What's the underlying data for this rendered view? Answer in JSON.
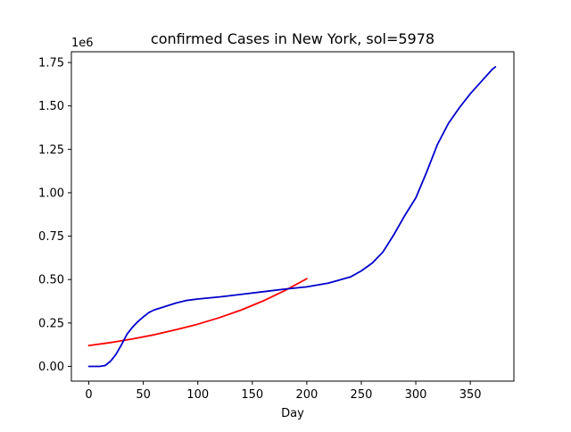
{
  "chart_data": {
    "type": "line",
    "title": "confirmed Cases in New York, sol=5978",
    "xlabel": "Day",
    "ylabel": "",
    "y_offset_label": "1e6",
    "xlim": [
      -16,
      390
    ],
    "ylim": [
      -85000,
      1812000
    ],
    "x_ticks": [
      0,
      50,
      100,
      150,
      200,
      250,
      300,
      350
    ],
    "x_tick_labels": [
      "0",
      "50",
      "100",
      "150",
      "200",
      "250",
      "300",
      "350"
    ],
    "y_ticks": [
      0,
      250000,
      500000,
      750000,
      1000000,
      1250000,
      1500000,
      1750000
    ],
    "y_tick_labels": [
      "0.00",
      "0.25",
      "0.50",
      "0.75",
      "1.00",
      "1.25",
      "1.50",
      "1.75"
    ],
    "grid": false,
    "series": [
      {
        "color": "#ff0000",
        "x": [
          0,
          20,
          40,
          60,
          80,
          100,
          120,
          140,
          160,
          180,
          200
        ],
        "y": [
          120000,
          137000,
          158000,
          182000,
          211000,
          243000,
          281000,
          325000,
          377000,
          437000,
          505000
        ]
      },
      {
        "color": "#0000cc",
        "x": [
          0,
          5,
          10,
          15,
          20,
          25,
          30,
          35,
          40,
          45,
          50,
          55,
          60,
          70,
          80,
          90,
          100,
          120,
          140,
          160,
          180,
          200,
          220,
          240,
          250,
          260,
          270,
          280,
          290,
          300,
          310,
          320,
          330,
          340,
          350,
          360,
          370,
          373
        ],
        "y": [
          0,
          0,
          0,
          5000,
          30000,
          70000,
          125000,
          185000,
          225000,
          258000,
          285000,
          310000,
          325000,
          345000,
          365000,
          380000,
          388000,
          400000,
          415000,
          430000,
          445000,
          458000,
          480000,
          515000,
          550000,
          595000,
          660000,
          760000,
          870000,
          970000,
          1120000,
          1280000,
          1400000,
          1490000,
          1570000,
          1640000,
          1710000,
          1725000
        ]
      }
    ]
  }
}
